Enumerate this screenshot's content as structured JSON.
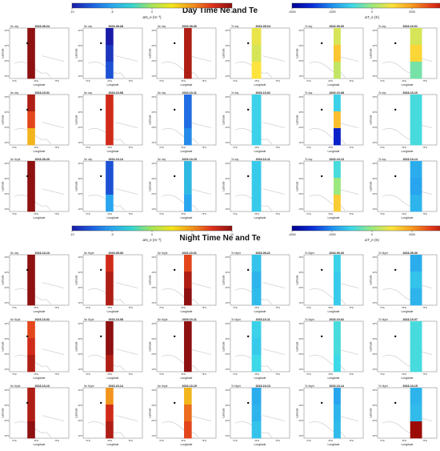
{
  "colors": {
    "ne_scale": [
      "#1a1aa8",
      "#1e5fe0",
      "#2aa6ef",
      "#36d6cf",
      "#a6e35a",
      "#f4e51b",
      "#f2951d",
      "#e0321c",
      "#8e1010"
    ],
    "te_scale": [
      "#00008f",
      "#0b2bd8",
      "#1e8ff0",
      "#3ed9e8",
      "#9be87e",
      "#fde33d",
      "#f79b1f",
      "#e2371c",
      "#8b0000"
    ],
    "coast": "#c8c8c8",
    "frame": "#777777"
  },
  "sections": [
    {
      "title": "Day Time Ne and Te",
      "colorbars": [
        {
          "variable": "Ne",
          "label": "ΔN_e (m⁻³)",
          "ticks": [
            "-10",
            "-5",
            "0",
            "5",
            "10"
          ],
          "min": -10,
          "max": 10
        },
        {
          "variable": "Te",
          "label": "ΔT_e (K)",
          "ticks": [
            "-4000",
            "-2000",
            "0",
            "2000",
            "4000"
          ],
          "min": -4000,
          "max": 4000
        }
      ],
      "panel_rows": [
        [
          {
            "date": "2023-09-24",
            "tag": "Ne day",
            "variable": "Ne",
            "values": [
              10,
              10,
              10
            ]
          },
          {
            "date": "2023-09-28",
            "tag": "Ne day",
            "variable": "Ne",
            "values": [
              -10,
              -9,
              -8
            ]
          },
          {
            "date": "2023-09-30",
            "tag": "Ne day",
            "variable": "Ne",
            "values": [
              9,
              9,
              9
            ]
          },
          {
            "date": "2023-09-24",
            "tag": "Te day",
            "variable": "Te",
            "values": [
              800,
              600,
              1000
            ]
          },
          {
            "date": "2023-09-30",
            "tag": "Te day",
            "variable": "Te",
            "values": [
              600,
              1400,
              400
            ]
          },
          {
            "date": "2023-10-01",
            "tag": "Te day",
            "variable": "Te",
            "values": [
              600,
              1200,
              -400
            ]
          }
        ],
        [
          {
            "date": "2023-10-01",
            "tag": "Ne day",
            "variable": "Ne",
            "values": [
              9,
              7,
              4
            ]
          },
          {
            "date": "2023-10-08",
            "tag": "Ne day",
            "variable": "Ne",
            "values": [
              8,
              8,
              8
            ]
          },
          {
            "date": "2023-10-11",
            "tag": "Ne day",
            "variable": "Ne",
            "values": [
              -7,
              -7,
              -6
            ]
          },
          {
            "date": "2023-10-02",
            "tag": "Te day",
            "variable": "Te",
            "values": [
              -1100,
              -1100,
              -1100
            ]
          },
          {
            "date": "2023-10-08",
            "tag": "Te day",
            "variable": "Te",
            "values": [
              -1100,
              1500,
              -3200
            ]
          },
          {
            "date": "2023-10-10",
            "tag": "Te day",
            "variable": "Te",
            "values": [
              -900,
              -900,
              -900
            ]
          }
        ],
        [
          {
            "date": "2023-09-29",
            "tag": "Ne Night",
            "variable": "Ne",
            "values": [
              10,
              10,
              10
            ]
          },
          {
            "date": "2023-10-14",
            "tag": "Ne day",
            "variable": "Ne",
            "values": [
              -8,
              -8,
              -5
            ]
          },
          {
            "date": "2023-10-15",
            "tag": "Ne day",
            "variable": "Ne",
            "values": [
              -4,
              -4,
              -5
            ]
          },
          {
            "date": "2023-10-11",
            "tag": "Te day",
            "variable": "Te",
            "values": [
              -1200,
              -1200,
              -1200
            ]
          },
          {
            "date": "2023-10-13",
            "tag": "Te day",
            "variable": "Te",
            "values": [
              -900,
              0,
              1300
            ]
          },
          {
            "date": "2023-10-14",
            "tag": "Te day",
            "variable": "Te",
            "values": [
              -1600,
              -1700,
              -1500
            ]
          }
        ]
      ]
    },
    {
      "title": "Night Time Ne and Te",
      "colorbars": [
        {
          "variable": "Ne",
          "label": "ΔN_e (m⁻³)",
          "ticks": [
            "-10",
            "-5",
            "0",
            "5",
            "10"
          ],
          "min": -10,
          "max": 10
        },
        {
          "variable": "Te",
          "label": "ΔT_e (K)",
          "ticks": [
            "-4000",
            "-2000",
            "0",
            "2000",
            "4000"
          ],
          "min": -4000,
          "max": 4000
        }
      ],
      "panel_rows": [
        [
          {
            "date": "2023-10-13",
            "tag": "Ne day",
            "variable": "Ne",
            "values": [
              10,
              10,
              10
            ]
          },
          {
            "date": "2023-09-30",
            "tag": "Ne Night",
            "variable": "Ne",
            "values": [
              8,
              9,
              9
            ]
          },
          {
            "date": "2023-10-01",
            "tag": "Ne Night",
            "variable": "Ne",
            "values": [
              7,
              9,
              10
            ]
          },
          {
            "date": "2023-09-21",
            "tag": "Te Night",
            "variable": "Te",
            "values": [
              -1300,
              -1500,
              -1400
            ]
          },
          {
            "date": "2023-09-26",
            "tag": "Te Night",
            "variable": "Te",
            "values": [
              -1100,
              -1200,
              -1200
            ]
          },
          {
            "date": "2023-09-30",
            "tag": "Te Night",
            "variable": "Te",
            "values": [
              -1600,
              -1300,
              -1500
            ]
          }
        ],
        [
          {
            "date": "2023-10-02",
            "tag": "Ne Night",
            "variable": "Ne",
            "values": [
              7,
              8,
              9
            ]
          },
          {
            "date": "2023-10-08",
            "tag": "Ne Night",
            "variable": "Ne",
            "values": [
              10,
              10,
              9
            ]
          },
          {
            "date": "2023-10-11",
            "tag": "Ne Night",
            "variable": "Ne",
            "values": [
              10,
              10,
              10
            ]
          },
          {
            "date": "2023-10-11",
            "tag": "Te Night",
            "variable": "Te",
            "values": [
              -1100,
              -1200,
              -1000
            ]
          },
          {
            "date": "2023-10-02",
            "tag": "Te Night",
            "variable": "Te",
            "values": [
              -900,
              -900,
              -1000
            ]
          },
          {
            "date": "2023-10-07",
            "tag": "Te Night",
            "variable": "Te",
            "values": [
              -900,
              -900,
              -900
            ]
          }
        ],
        [
          {
            "date": "2023-10-13",
            "tag": "Ne Night",
            "variable": "Ne",
            "values": [
              9,
              9,
              10
            ]
          },
          {
            "date": "2023-10-14",
            "tag": "Ne Night",
            "variable": "Ne",
            "values": [
              5,
              8,
              9
            ]
          },
          {
            "date": "2023-10-15",
            "tag": "Ne Night",
            "variable": "Ne",
            "values": [
              4,
              6,
              7
            ]
          },
          {
            "date": "2023-10-13",
            "tag": "Te Night",
            "variable": "Te",
            "values": [
              -1600,
              -1500,
              -1300
            ]
          },
          {
            "date": "2023-10-14",
            "tag": "Te Night",
            "variable": "Te",
            "values": [
              -1700,
              -1500,
              -1400
            ]
          },
          {
            "date": "2023-10-15",
            "tag": "Te Night",
            "variable": "Te",
            "values": [
              -1500,
              -1400,
              3800
            ]
          }
        ]
      ]
    }
  ],
  "axes": {
    "ylabel": "Latitude",
    "xlabel": "Longitude",
    "yticks": [
      "40°N",
      "30°N",
      "20°N",
      "10°N"
    ],
    "xticks": [
      "70°E",
      "65°E",
      "75°E"
    ]
  },
  "chart_data": [
    {
      "type": "heatmap",
      "title": "Day Time Ne and Te",
      "xlabel": "Longitude",
      "ylabel": "Latitude",
      "color_ranges": {
        "Ne": [
          -10,
          10
        ],
        "Te": [
          -4000,
          4000
        ]
      },
      "panels": [
        {
          "date": "2023-09-24",
          "variable": "Ne",
          "values_north_to_south": [
            10,
            10,
            10
          ]
        },
        {
          "date": "2023-09-28",
          "variable": "Ne",
          "values_north_to_south": [
            -10,
            -9,
            -8
          ]
        },
        {
          "date": "2023-09-30",
          "variable": "Ne",
          "values_north_to_south": [
            9,
            9,
            9
          ]
        },
        {
          "date": "2023-09-24",
          "variable": "Te",
          "values_north_to_south": [
            800,
            600,
            1000
          ]
        },
        {
          "date": "2023-09-30",
          "variable": "Te",
          "values_north_to_south": [
            600,
            1400,
            400
          ]
        },
        {
          "date": "2023-10-01",
          "variable": "Te",
          "values_north_to_south": [
            600,
            1200,
            -400
          ]
        },
        {
          "date": "2023-10-01",
          "variable": "Ne",
          "values_north_to_south": [
            9,
            7,
            4
          ]
        },
        {
          "date": "2023-10-08",
          "variable": "Ne",
          "values_north_to_south": [
            8,
            8,
            8
          ]
        },
        {
          "date": "2023-10-11",
          "variable": "Ne",
          "values_north_to_south": [
            -7,
            -7,
            -6
          ]
        },
        {
          "date": "2023-10-02",
          "variable": "Te",
          "values_north_to_south": [
            -1100,
            -1100,
            -1100
          ]
        },
        {
          "date": "2023-10-08",
          "variable": "Te",
          "values_north_to_south": [
            -1100,
            1500,
            -3200
          ]
        },
        {
          "date": "2023-10-10",
          "variable": "Te",
          "values_north_to_south": [
            -900,
            -900,
            -900
          ]
        },
        {
          "date": "2023-09-29",
          "variable": "Ne",
          "values_north_to_south": [
            10,
            10,
            10
          ]
        },
        {
          "date": "2023-10-14",
          "variable": "Ne",
          "values_north_to_south": [
            -8,
            -8,
            -5
          ]
        },
        {
          "date": "2023-10-15",
          "variable": "Ne",
          "values_north_to_south": [
            -4,
            -4,
            -5
          ]
        },
        {
          "date": "2023-10-11",
          "variable": "Te",
          "values_north_to_south": [
            -1200,
            -1200,
            -1200
          ]
        },
        {
          "date": "2023-10-13",
          "variable": "Te",
          "values_north_to_south": [
            -900,
            0,
            1300
          ]
        },
        {
          "date": "2023-10-14",
          "variable": "Te",
          "values_north_to_south": [
            -1600,
            -1700,
            -1500
          ]
        }
      ]
    },
    {
      "type": "heatmap",
      "title": "Night Time Ne and Te",
      "xlabel": "Longitude",
      "ylabel": "Latitude",
      "color_ranges": {
        "Ne": [
          -10,
          10
        ],
        "Te": [
          -4000,
          4000
        ]
      },
      "panels": [
        {
          "date": "2023-10-13",
          "variable": "Ne",
          "values_north_to_south": [
            10,
            10,
            10
          ]
        },
        {
          "date": "2023-09-30",
          "variable": "Ne",
          "values_north_to_south": [
            8,
            9,
            9
          ]
        },
        {
          "date": "2023-10-01",
          "variable": "Ne",
          "values_north_to_south": [
            7,
            9,
            10
          ]
        },
        {
          "date": "2023-09-21",
          "variable": "Te",
          "values_north_to_south": [
            -1300,
            -1500,
            -1400
          ]
        },
        {
          "date": "2023-09-26",
          "variable": "Te",
          "values_north_to_south": [
            -1100,
            -1200,
            -1200
          ]
        },
        {
          "date": "2023-09-30",
          "variable": "Te",
          "values_north_to_south": [
            -1600,
            -1300,
            -1500
          ]
        },
        {
          "date": "2023-10-02",
          "variable": "Ne",
          "values_north_to_south": [
            7,
            8,
            9
          ]
        },
        {
          "date": "2023-10-08",
          "variable": "Ne",
          "values_north_to_south": [
            10,
            10,
            9
          ]
        },
        {
          "date": "2023-10-11",
          "variable": "Ne",
          "values_north_to_south": [
            10,
            10,
            10
          ]
        },
        {
          "date": "2023-10-11",
          "variable": "Te",
          "values_north_to_south": [
            -1100,
            -1200,
            -1000
          ]
        },
        {
          "date": "2023-10-02",
          "variable": "Te",
          "values_north_to_south": [
            -900,
            -900,
            -1000
          ]
        },
        {
          "date": "2023-10-07",
          "variable": "Te",
          "values_north_to_south": [
            -900,
            -900,
            -900
          ]
        },
        {
          "date": "2023-10-13",
          "variable": "Ne",
          "values_north_to_south": [
            9,
            9,
            10
          ]
        },
        {
          "date": "2023-10-14",
          "variable": "Ne",
          "values_north_to_south": [
            5,
            8,
            9
          ]
        },
        {
          "date": "2023-10-15",
          "variable": "Ne",
          "values_north_to_south": [
            4,
            6,
            7
          ]
        },
        {
          "date": "2023-10-13",
          "variable": "Te",
          "values_north_to_south": [
            -1600,
            -1500,
            -1300
          ]
        },
        {
          "date": "2023-10-14",
          "variable": "Te",
          "values_north_to_south": [
            -1700,
            -1500,
            -1400
          ]
        },
        {
          "date": "2023-10-15",
          "variable": "Te",
          "values_north_to_south": [
            -1500,
            -1400,
            3800
          ]
        }
      ]
    }
  ]
}
